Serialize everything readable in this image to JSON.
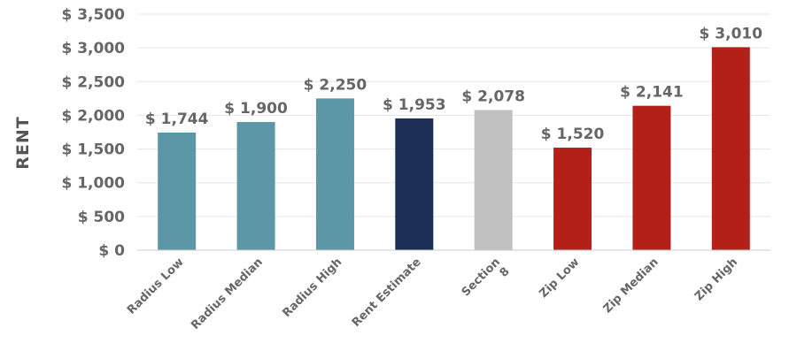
{
  "chart_data": {
    "type": "bar",
    "title": "",
    "xlabel": "",
    "ylabel": "RENT",
    "categories": [
      [
        "Radius Low"
      ],
      [
        "Radius Median"
      ],
      [
        "Radius High"
      ],
      [
        "Rent Estimate"
      ],
      [
        "Section",
        "8"
      ],
      [
        "Zip Low"
      ],
      [
        "Zip Median"
      ],
      [
        "Zip High"
      ]
    ],
    "values": [
      1744,
      1900,
      2250,
      1953,
      2078,
      1520,
      2141,
      3010
    ],
    "value_labels": [
      "$ 1,744",
      "$ 1,900",
      "$ 2,250",
      "$ 1,953",
      "$ 2,078",
      "$ 1,520",
      "$ 2,141",
      "$ 3,010"
    ],
    "colors": [
      "#5b97a6",
      "#5b97a6",
      "#5b97a6",
      "#1c2e55",
      "#c0c0c0",
      "#b22018",
      "#b22018",
      "#b22018"
    ],
    "ylim": [
      0,
      3500
    ],
    "yticks": [
      0,
      500,
      1000,
      1500,
      2000,
      2500,
      3000,
      3500
    ],
    "ytick_labels": [
      "$ 0",
      "$ 500",
      "$ 1,000",
      "$ 1,500",
      "$ 2,000",
      "$ 2,500",
      "$ 3,000",
      "$ 3,500"
    ],
    "grid": true,
    "legend": "none"
  }
}
